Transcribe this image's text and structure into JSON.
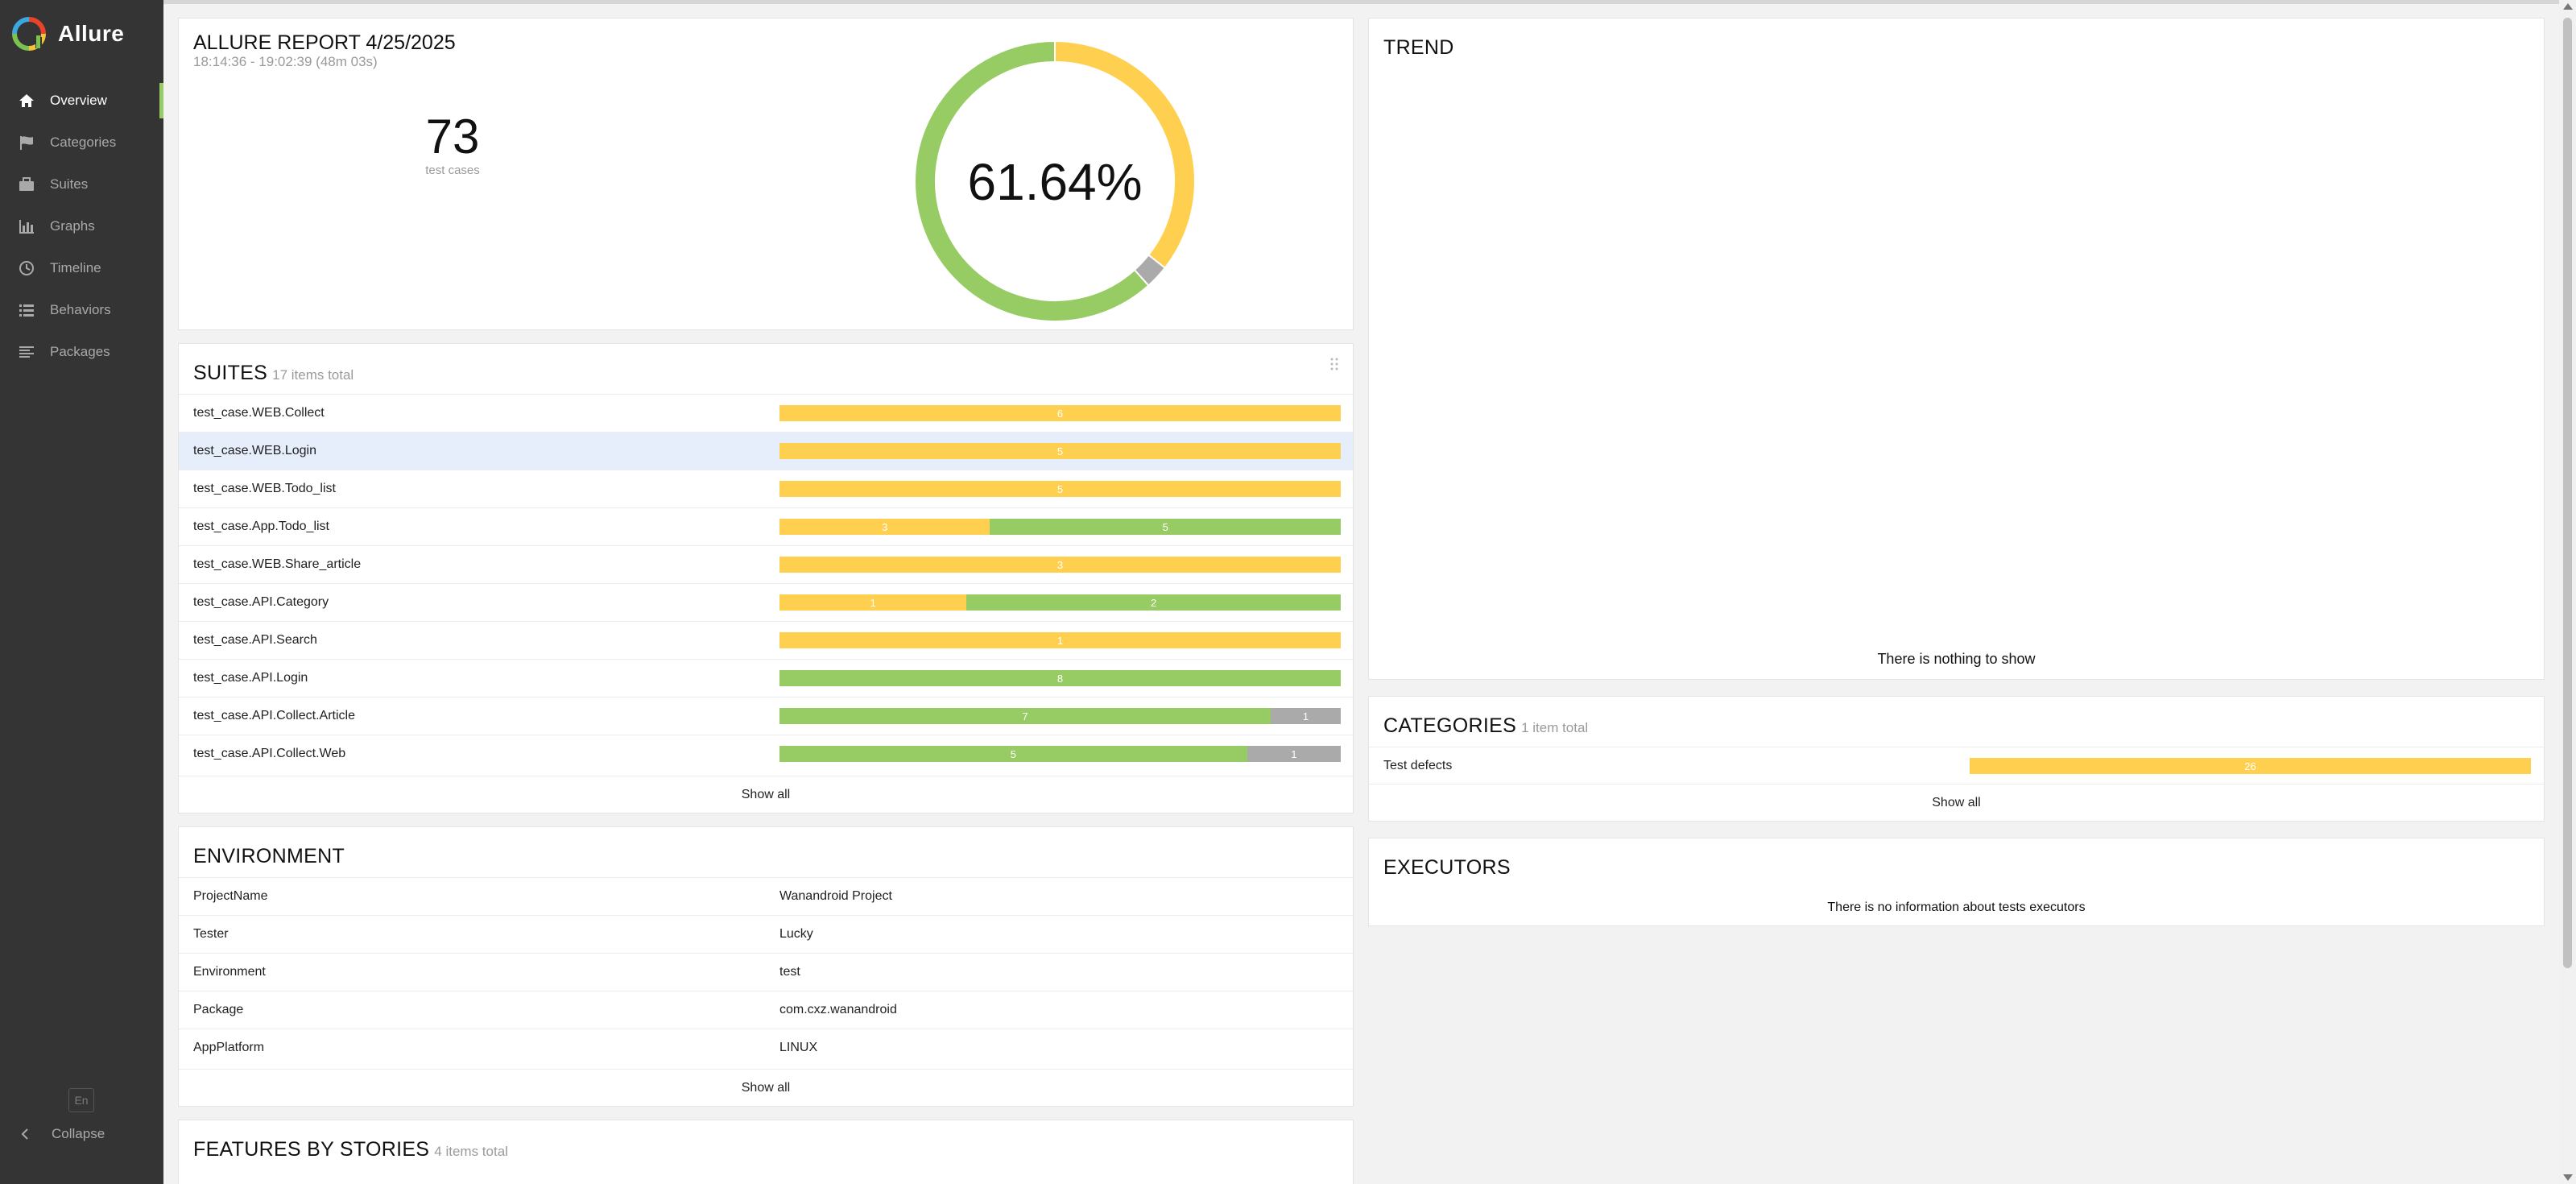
{
  "app": {
    "name": "Allure"
  },
  "sidebar": {
    "items": [
      {
        "label": "Overview",
        "icon": "home-icon",
        "active": true
      },
      {
        "label": "Categories",
        "icon": "flag-icon"
      },
      {
        "label": "Suites",
        "icon": "briefcase-icon"
      },
      {
        "label": "Graphs",
        "icon": "bar-chart-icon"
      },
      {
        "label": "Timeline",
        "icon": "clock-icon"
      },
      {
        "label": "Behaviors",
        "icon": "list-icon"
      },
      {
        "label": "Packages",
        "icon": "align-left-icon"
      }
    ],
    "lang": "En",
    "collapse": "Collapse"
  },
  "summary": {
    "title": "ALLURE REPORT 4/25/2025",
    "time": "18:14:36 - 19:02:39 (48m 03s)",
    "count": "73",
    "count_label": "test cases",
    "percent": "61.64%"
  },
  "colors": {
    "broken": "#ffd050",
    "passed": "#97cc64",
    "skipped": "#aaaaaa"
  },
  "chart_data": {
    "type": "pie",
    "labels": [
      "passed",
      "broken",
      "skipped"
    ],
    "values": [
      45,
      26,
      2
    ],
    "center_label": "61.64%"
  },
  "suites": {
    "title": "SUITES",
    "subtitle": "17 items total",
    "rows": [
      {
        "name": "test_case.WEB.Collect",
        "broken": 6,
        "passed": 0,
        "skipped": 0
      },
      {
        "name": "test_case.WEB.Login",
        "broken": 5,
        "passed": 0,
        "skipped": 0
      },
      {
        "name": "test_case.WEB.Todo_list",
        "broken": 5,
        "passed": 0,
        "skipped": 0
      },
      {
        "name": "test_case.App.Todo_list",
        "broken": 3,
        "passed": 5,
        "skipped": 0
      },
      {
        "name": "test_case.WEB.Share_article",
        "broken": 3,
        "passed": 0,
        "skipped": 0
      },
      {
        "name": "test_case.API.Category",
        "broken": 1,
        "passed": 2,
        "skipped": 0
      },
      {
        "name": "test_case.API.Search",
        "broken": 1,
        "passed": 0,
        "skipped": 0
      },
      {
        "name": "test_case.API.Login",
        "broken": 0,
        "passed": 8,
        "skipped": 0
      },
      {
        "name": "test_case.API.Collect.Article",
        "broken": 0,
        "passed": 7,
        "skipped": 1
      },
      {
        "name": "test_case.API.Collect.Web",
        "broken": 0,
        "passed": 5,
        "skipped": 1
      }
    ],
    "show_all": "Show all"
  },
  "environment": {
    "title": "ENVIRONMENT",
    "rows": [
      {
        "name": "ProjectName",
        "value": "Wanandroid Project"
      },
      {
        "name": "Tester",
        "value": "Lucky"
      },
      {
        "name": "Environment",
        "value": "test"
      },
      {
        "name": "Package",
        "value": "com.cxz.wanandroid"
      },
      {
        "name": "AppPlatform",
        "value": "LINUX"
      }
    ],
    "show_all": "Show all"
  },
  "features": {
    "title": "FEATURES BY STORIES",
    "subtitle": "4 items total"
  },
  "trend": {
    "title": "TREND",
    "empty": "There is nothing to show"
  },
  "categories": {
    "title": "CATEGORIES",
    "subtitle": "1 item total",
    "rows": [
      {
        "name": "Test defects",
        "broken": 26
      }
    ],
    "show_all": "Show all"
  },
  "executors": {
    "title": "EXECUTORS",
    "empty": "There is no information about tests executors"
  }
}
